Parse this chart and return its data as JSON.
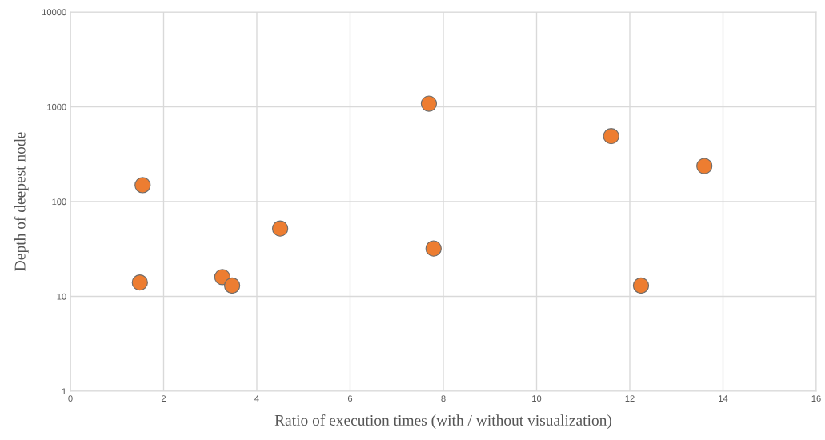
{
  "chart_data": {
    "type": "scatter",
    "xlabel": "Ratio of execution times (with / without visualization)",
    "ylabel": "Depth of deepest node",
    "x": [
      1.49,
      1.55,
      3.26,
      3.47,
      4.5,
      7.69,
      7.79,
      11.6,
      12.24,
      13.6
    ],
    "values": [
      14,
      149,
      16,
      13,
      52,
      1080,
      32,
      490,
      13,
      237
    ],
    "color": "#ed7d31",
    "marker": "circle",
    "log": "y",
    "grid": true,
    "xlim": [
      0,
      16
    ],
    "xticks": [
      0,
      2,
      4,
      6,
      8,
      10,
      12,
      14,
      16
    ],
    "ylim": [
      1,
      10000
    ],
    "yticks": [
      1,
      10,
      100,
      1000,
      10000
    ]
  }
}
